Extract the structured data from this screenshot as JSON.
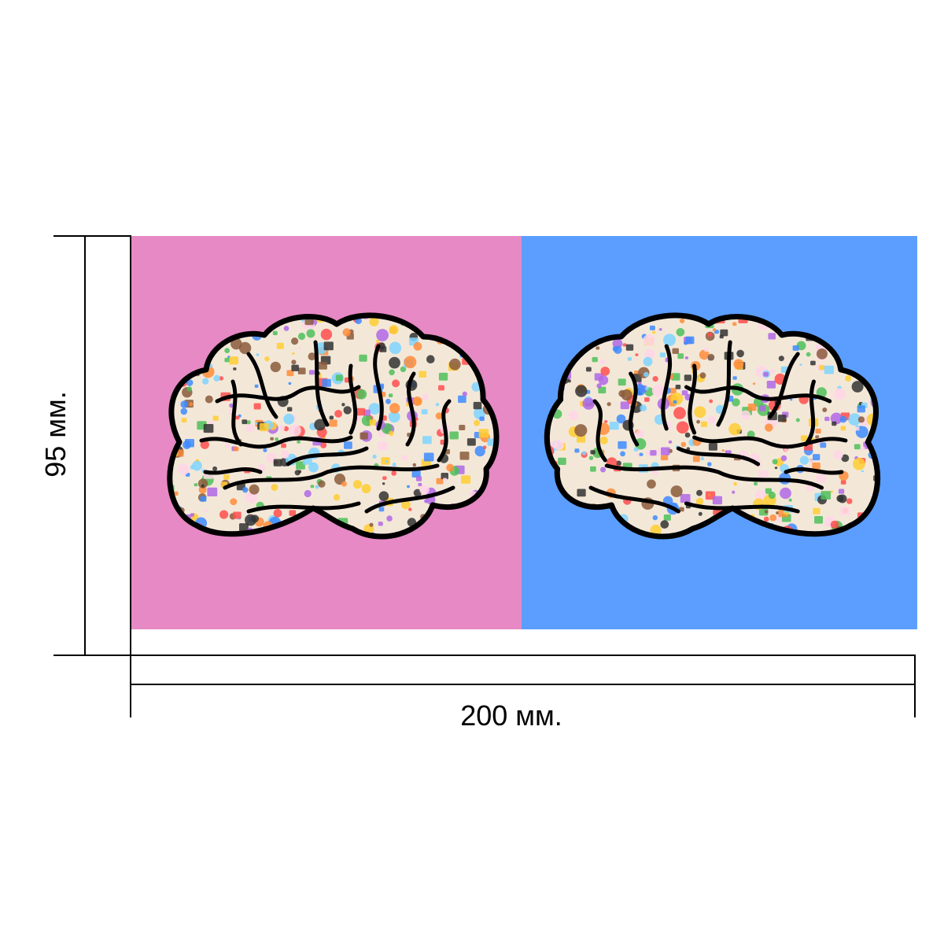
{
  "dimensions": {
    "height_label": "95 мм.",
    "width_label": "200 мм."
  },
  "panels": {
    "left": {
      "background": "#e689c4",
      "subject": "brain-illustration-facing-right"
    },
    "right": {
      "background": "#5b9eff",
      "subject": "brain-illustration-facing-left"
    }
  },
  "colors": {
    "outline": "#000000",
    "brain_fill": "#f3e8d8",
    "sticker_colors": [
      "#ff4d4d",
      "#ffcc33",
      "#4dbf5a",
      "#3d8bff",
      "#b067e6",
      "#ff8c3a",
      "#8a5a3c",
      "#ffd6e8",
      "#7fd3ff",
      "#333333"
    ]
  }
}
